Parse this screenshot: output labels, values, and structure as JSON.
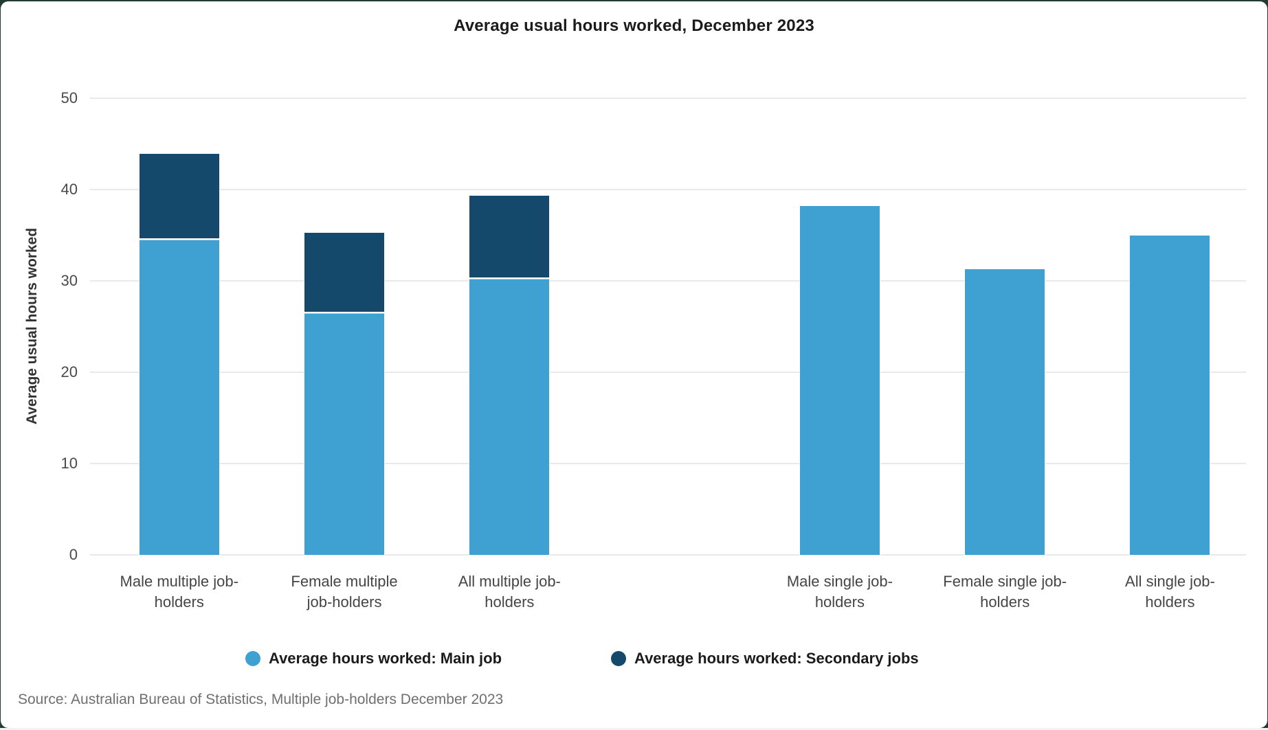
{
  "page": {
    "outer_background": "#223c35",
    "card_background": "#ffffff",
    "bottom_strip_color": "#f1f1f6"
  },
  "source": "Source: Australian Bureau of Statistics, Multiple job-holders December 2023",
  "chart_data": {
    "type": "bar",
    "stacked": true,
    "title": "Average usual hours worked, December 2023",
    "xlabel": "",
    "ylabel": "Average usual hours worked",
    "ylim": [
      0,
      50
    ],
    "yticks": [
      0,
      10,
      20,
      30,
      40,
      50
    ],
    "grid": true,
    "legend_position": "bottom",
    "categories": [
      {
        "label": "Male multiple job-holders",
        "lines": [
          "Male multiple job-",
          "holders"
        ],
        "slot": 0
      },
      {
        "label": "Female multiple job-holders",
        "lines": [
          "Female multiple",
          "job-holders"
        ],
        "slot": 1
      },
      {
        "label": "All multiple job-holders",
        "lines": [
          "All multiple job-",
          "holders"
        ],
        "slot": 2
      },
      {
        "label": "Male single job-holders",
        "lines": [
          "Male single job-",
          "holders"
        ],
        "slot": 4
      },
      {
        "label": "Female single job-holders",
        "lines": [
          "Female single job-",
          "holders"
        ],
        "slot": 5
      },
      {
        "label": "All single job-holders",
        "lines": [
          "All single job-",
          "holders"
        ],
        "slot": 6
      }
    ],
    "total_slots": 7,
    "series": [
      {
        "name": "Average hours worked: Main job",
        "color": "#3FA0D2",
        "values": [
          34.5,
          26.5,
          30.2,
          38.2,
          31.3,
          35.0
        ]
      },
      {
        "name": "Average hours worked: Secondary jobs",
        "color": "#15496B",
        "values": [
          9.4,
          8.8,
          9.1,
          0,
          0,
          0
        ]
      }
    ],
    "totals": [
      43.9,
      35.3,
      39.3,
      38.2,
      31.3,
      35.0
    ]
  }
}
